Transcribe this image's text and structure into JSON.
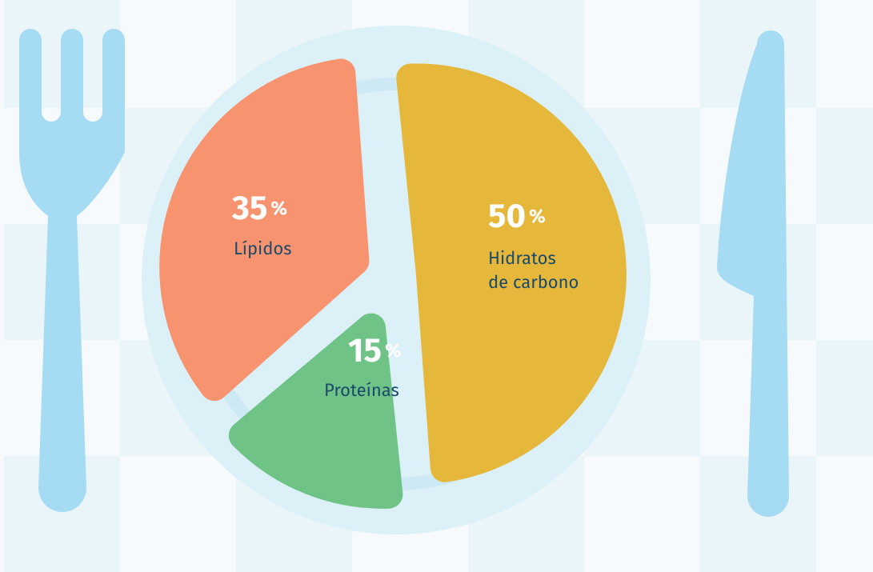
{
  "chart_data": {
    "type": "pie",
    "categories": [
      "Hidratos\nde carbono",
      "Proteínas",
      "Lípidos"
    ],
    "values": [
      50,
      15,
      35
    ],
    "colors": [
      "#e5b83b",
      "#6fc386",
      "#f7936f"
    ],
    "unit": "%"
  }
}
